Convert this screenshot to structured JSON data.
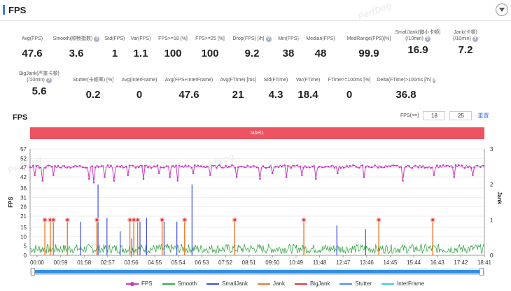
{
  "header": {
    "title": "FPS"
  },
  "watermark": "PerfDog",
  "metrics_row1": [
    {
      "label": "Avg(FPS)",
      "value": "47.6",
      "help": false
    },
    {
      "label": "Smooth(顺畅指数)",
      "value": "3.6",
      "help": true
    },
    {
      "label": "Std(FPS)",
      "value": "1",
      "help": false
    },
    {
      "label": "Var(FPS)",
      "value": "1.1",
      "help": false
    },
    {
      "label": "FPS>=18 [%]",
      "value": "100",
      "help": false
    },
    {
      "label": "FPS>=25 [%]",
      "value": "100",
      "help": false
    },
    {
      "label": "Drop(FPS) [/h]",
      "value": "9.2",
      "help": true
    },
    {
      "label": "Min(FPS)",
      "value": "38",
      "help": false
    },
    {
      "label": "Median(FPS)",
      "value": "48",
      "help": false
    },
    {
      "label": "MedRange(FPS)[%]",
      "value": "99.9",
      "help": false
    },
    {
      "label": "SmallJank(微小卡顿)",
      "label2": "(/10min)",
      "value": "16.9",
      "help": true
    },
    {
      "label": "Jank(卡顿)",
      "label2": "(/10min)",
      "value": "7.2",
      "help": true
    }
  ],
  "metrics_row2": [
    {
      "label": "BigJank(严重卡顿)",
      "label2": "(/10min)",
      "value": "5.6",
      "help": true
    },
    {
      "label": "Stutter(卡顿率) [%]",
      "value": "0.2",
      "help": false
    },
    {
      "label": "Avg(InterFrame)",
      "value": "0",
      "help": false
    },
    {
      "label": "Avg(FPS+InterFrame)",
      "value": "47.6",
      "help": false
    },
    {
      "label": "Avg(FTime) [ms]",
      "value": "21",
      "help": false
    },
    {
      "label": "Std(FTime)",
      "value": "4.3",
      "help": false
    },
    {
      "label": "Var(FTime)",
      "value": "18.4",
      "help": false
    },
    {
      "label": "FTime>=100ms [%]",
      "value": "0",
      "help": false
    },
    {
      "label": "Delta(FTime)>100ms [/h]",
      "value": "36.8",
      "help": true
    }
  ],
  "chart_title": "FPS",
  "filter": {
    "label": "FPS(>=)",
    "value1": "18",
    "value2": "25",
    "reset_label": "重置"
  },
  "label_bar": "label1",
  "legend": [
    {
      "name": "FPS",
      "color": "#c83bc1",
      "marker": true
    },
    {
      "name": "Smooth",
      "color": "#3aa84a",
      "marker": false
    },
    {
      "name": "SmallJank",
      "color": "#3d4fe0",
      "marker": false
    },
    {
      "name": "Jank",
      "color": "#f07a2c",
      "marker": false
    },
    {
      "name": "BigJank",
      "color": "#e23a3a",
      "marker": false
    },
    {
      "name": "Stutter",
      "color": "#4a8ee8",
      "marker": false
    },
    {
      "name": "InterFrame",
      "color": "#3fc9d8",
      "marker": false
    }
  ],
  "chart_data": {
    "type": "line",
    "x_ticks": [
      "00:00",
      "00:59",
      "01:58",
      "02:57",
      "03:56",
      "04:55",
      "05:54",
      "06:53",
      "07:52",
      "08:51",
      "09:50",
      "10:49",
      "11:48",
      "12:47",
      "13:46",
      "14:45",
      "15:44",
      "16:43",
      "17:42",
      "18:41"
    ],
    "x_range_seconds": [
      0,
      1170
    ],
    "y_left_label": "FPS",
    "y_left_ticks": [
      0,
      5,
      10,
      15,
      21,
      26,
      31,
      36,
      42,
      47,
      52,
      57
    ],
    "y_left_range": [
      0,
      57
    ],
    "y_right_label": "Jank",
    "y_right_ticks": [
      0,
      1,
      2,
      3
    ],
    "y_right_range": [
      0,
      3
    ],
    "series": [
      {
        "name": "FPS",
        "baseline": 47.6,
        "dips": [
          [
            10,
            43
          ],
          [
            30,
            40
          ],
          [
            60,
            43
          ],
          [
            150,
            41
          ],
          [
            165,
            39
          ],
          [
            190,
            42
          ],
          [
            215,
            40
          ],
          [
            250,
            43
          ],
          [
            290,
            41
          ],
          [
            330,
            44
          ],
          [
            360,
            42
          ],
          [
            380,
            40
          ],
          [
            420,
            44
          ],
          [
            465,
            43
          ],
          [
            530,
            42
          ],
          [
            590,
            41
          ],
          [
            625,
            44
          ],
          [
            660,
            42
          ],
          [
            700,
            43
          ],
          [
            735,
            41
          ],
          [
            790,
            44
          ],
          [
            860,
            42
          ],
          [
            960,
            40
          ],
          [
            1040,
            43
          ],
          [
            1090,
            42
          ],
          [
            1140,
            43
          ]
        ]
      },
      {
        "name": "Smooth",
        "baseline": 3,
        "range": [
          1,
          6
        ]
      },
      {
        "name": "SmallJank",
        "spikes": [
          [
            130,
            18
          ],
          [
            175,
            38
          ],
          [
            198,
            20
          ],
          [
            232,
            13
          ],
          [
            262,
            9
          ],
          [
            283,
            18
          ],
          [
            300,
            20
          ],
          [
            345,
            18
          ],
          [
            378,
            18
          ],
          [
            417,
            38
          ],
          [
            790,
            16
          ],
          [
            864,
            14
          ]
        ]
      },
      {
        "name": "Jank",
        "spikes": [
          [
            38,
            19
          ],
          [
            52,
            19
          ],
          [
            60,
            19
          ],
          [
            96,
            19
          ],
          [
            172,
            19
          ],
          [
            257,
            19
          ],
          [
            267,
            19
          ],
          [
            277,
            19
          ],
          [
            340,
            19
          ],
          [
            398,
            19
          ],
          [
            527,
            19
          ],
          [
            705,
            19
          ],
          [
            898,
            19
          ],
          [
            1037,
            19
          ]
        ]
      },
      {
        "name": "BigJank",
        "markers": [
          [
            38,
            19
          ],
          [
            52,
            19
          ],
          [
            60,
            19
          ],
          [
            96,
            19
          ],
          [
            172,
            19
          ],
          [
            257,
            19
          ],
          [
            267,
            19
          ],
          [
            277,
            19
          ],
          [
            340,
            19
          ],
          [
            398,
            19
          ],
          [
            527,
            19
          ],
          [
            705,
            19
          ],
          [
            898,
            19
          ],
          [
            1037,
            19
          ]
        ]
      }
    ]
  }
}
